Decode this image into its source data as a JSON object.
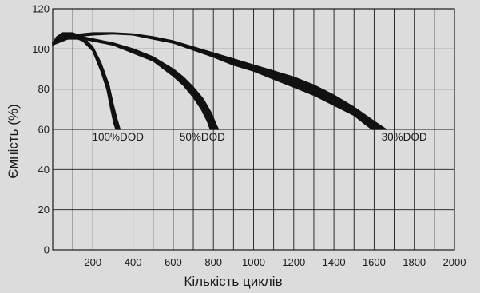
{
  "chart_data": {
    "type": "line",
    "title": "",
    "xlabel": "Кількість циклів",
    "ylabel": "Ємність (%)",
    "xlim": [
      0,
      2000
    ],
    "ylim": [
      0,
      120
    ],
    "xticks": [
      200,
      400,
      600,
      800,
      1000,
      1200,
      1400,
      1600,
      1800,
      2000
    ],
    "yticks": [
      0,
      20,
      40,
      60,
      80,
      100,
      120
    ],
    "grid": true,
    "legend": "none",
    "colors": {
      "background": "#dcdcdc",
      "grid": "#1a1a1a",
      "curve": "#111111"
    },
    "series": [
      {
        "name": "100%DOD",
        "upper": [
          [
            0,
            103
          ],
          [
            20,
            106
          ],
          [
            50,
            108
          ],
          [
            100,
            108
          ],
          [
            150,
            106
          ],
          [
            200,
            101
          ],
          [
            240,
            93
          ],
          [
            280,
            82
          ],
          [
            300,
            73
          ],
          [
            320,
            65
          ],
          [
            335,
            60
          ]
        ],
        "lower": [
          [
            0,
            103
          ],
          [
            20,
            104
          ],
          [
            50,
            106.5
          ],
          [
            100,
            106
          ],
          [
            150,
            104
          ],
          [
            200,
            99
          ],
          [
            240,
            89
          ],
          [
            270,
            80
          ],
          [
            290,
            70
          ],
          [
            305,
            63
          ],
          [
            315,
            60
          ]
        ]
      },
      {
        "name": "50%DOD",
        "upper": [
          [
            0,
            103
          ],
          [
            50,
            106.5
          ],
          [
            150,
            106
          ],
          [
            300,
            103
          ],
          [
            400,
            100
          ],
          [
            500,
            96
          ],
          [
            600,
            90
          ],
          [
            650,
            86
          ],
          [
            700,
            81
          ],
          [
            750,
            75
          ],
          [
            790,
            68
          ],
          [
            815,
            62
          ],
          [
            825,
            60
          ]
        ],
        "lower": [
          [
            0,
            102
          ],
          [
            50,
            105
          ],
          [
            150,
            105
          ],
          [
            300,
            102
          ],
          [
            400,
            98
          ],
          [
            500,
            94
          ],
          [
            600,
            86.5
          ],
          [
            650,
            82
          ],
          [
            700,
            76
          ],
          [
            740,
            70
          ],
          [
            770,
            64
          ],
          [
            785,
            60
          ]
        ]
      },
      {
        "name": "30%DOD",
        "upper": [
          [
            0,
            103
          ],
          [
            100,
            107
          ],
          [
            200,
            108
          ],
          [
            300,
            108
          ],
          [
            400,
            107.5
          ],
          [
            500,
            106
          ],
          [
            600,
            104
          ],
          [
            700,
            101
          ],
          [
            800,
            98
          ],
          [
            900,
            95
          ],
          [
            1000,
            92
          ],
          [
            1100,
            89
          ],
          [
            1200,
            86
          ],
          [
            1300,
            82
          ],
          [
            1400,
            77
          ],
          [
            1500,
            71
          ],
          [
            1600,
            64
          ],
          [
            1660,
            60
          ]
        ],
        "lower": [
          [
            0,
            102
          ],
          [
            100,
            106
          ],
          [
            200,
            107
          ],
          [
            300,
            107.5
          ],
          [
            400,
            107
          ],
          [
            500,
            105
          ],
          [
            600,
            103
          ],
          [
            700,
            99.5
          ],
          [
            800,
            96
          ],
          [
            900,
            92
          ],
          [
            1000,
            89
          ],
          [
            1100,
            85
          ],
          [
            1200,
            81
          ],
          [
            1300,
            77
          ],
          [
            1400,
            72
          ],
          [
            1500,
            67
          ],
          [
            1550,
            63
          ],
          [
            1590,
            60
          ]
        ]
      }
    ],
    "annotations": [
      {
        "text": "100%DOD",
        "x": 325,
        "y": 54.5
      },
      {
        "text": "50%DOD",
        "x": 745,
        "y": 54.5
      },
      {
        "text": "30%DOD",
        "x": 1750,
        "y": 54.5
      }
    ]
  }
}
